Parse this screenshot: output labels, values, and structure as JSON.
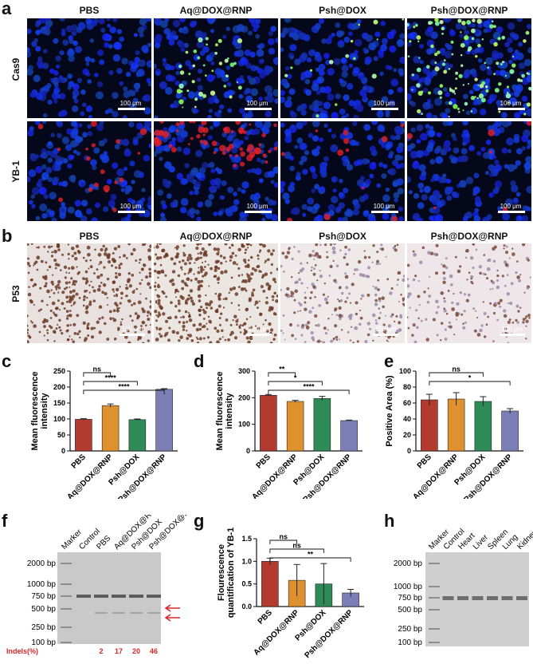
{
  "figure": {
    "panel_labels": [
      "a",
      "b",
      "c",
      "d",
      "e",
      "f",
      "g",
      "h"
    ],
    "groups": [
      "PBS",
      "Aq@DOX@RNP",
      "Psh@DOX",
      "Psh@DOX@RNP"
    ],
    "row_labels": {
      "cas9": "Cas9",
      "yb1": "YB-1",
      "p53": "P53"
    },
    "scale_bar": "100 μm"
  },
  "chart_data": [
    {
      "id": "c",
      "type": "bar",
      "categories": [
        "PBS",
        "Aq@DOX@RNP",
        "Psh@DOX",
        "Psh@DOX@RNP"
      ],
      "values": [
        99,
        142,
        98,
        193
      ],
      "errors": [
        2,
        5,
        2,
        2
      ],
      "ylabel": "Mean fluorescence\nintensity",
      "ylim": [
        0,
        250
      ],
      "yticks": [
        0,
        50,
        100,
        150,
        200,
        250
      ],
      "colors": [
        "#b23a2e",
        "#e0912f",
        "#2e8b57",
        "#7b7fb5"
      ],
      "significance": [
        {
          "from": 0,
          "to": 1,
          "label": "ns"
        },
        {
          "from": 0,
          "to": 2,
          "label": "****"
        },
        {
          "from": 0,
          "to": 3,
          "label": "****"
        }
      ]
    },
    {
      "id": "d",
      "type": "bar",
      "categories": [
        "PBS",
        "Aq@DOX@RNP",
        "Psh@DOX",
        "Psh@DOX@RNP"
      ],
      "values": [
        209,
        186,
        197,
        114
      ],
      "errors": [
        3,
        4,
        8,
        2
      ],
      "ylabel": "Mean fluorescence\nintensity",
      "ylim": [
        0,
        300
      ],
      "yticks": [
        0,
        100,
        200,
        300
      ],
      "colors": [
        "#b23a2e",
        "#e0912f",
        "#2e8b57",
        "#7b7fb5"
      ],
      "significance": [
        {
          "from": 0,
          "to": 1,
          "label": "**"
        },
        {
          "from": 0,
          "to": 2,
          "label": "*"
        },
        {
          "from": 0,
          "to": 3,
          "label": "****"
        }
      ]
    },
    {
      "id": "e",
      "type": "bar",
      "categories": [
        "PBS",
        "Aq@DOX@RNP",
        "Psh@DOX",
        "Psh@DOX@RNP"
      ],
      "values": [
        64,
        65,
        62,
        50
      ],
      "errors": [
        7,
        8,
        6,
        3
      ],
      "ylabel": "Positive Area (%)",
      "ylim": [
        0,
        100
      ],
      "yticks": [
        0,
        20,
        40,
        60,
        80,
        100
      ],
      "colors": [
        "#b23a2e",
        "#e0912f",
        "#2e8b57",
        "#7b7fb5"
      ],
      "significance": [
        {
          "from": 0,
          "to": 2,
          "label": "ns"
        },
        {
          "from": 0,
          "to": 3,
          "label": "*"
        }
      ]
    },
    {
      "id": "g",
      "type": "bar",
      "categories": [
        "PBS",
        "Aq@DOX@RNP",
        "Psh@DOX",
        "Psh@DOX@RNP"
      ],
      "values": [
        1.0,
        0.58,
        0.5,
        0.3
      ],
      "errors": [
        0.07,
        0.35,
        0.45,
        0.08
      ],
      "ylabel": "Flourescence\nquantification of YB-1",
      "ylim": [
        0,
        1.5
      ],
      "yticks": [
        0.0,
        0.5,
        1.0,
        1.5
      ],
      "colors": [
        "#b23a2e",
        "#e0912f",
        "#2e8b57",
        "#7b7fb5"
      ],
      "significance": [
        {
          "from": 0,
          "to": 1,
          "label": "ns"
        },
        {
          "from": 0,
          "to": 2,
          "label": "ns"
        },
        {
          "from": 0,
          "to": 3,
          "label": "**"
        }
      ]
    }
  ],
  "gel_f": {
    "lanes": [
      "Marker",
      "Control",
      "PBS",
      "Aq@DOX@RNP",
      "Psh@DOX",
      "Psh@DOX@RNP"
    ],
    "ladder": [
      "2000 bp",
      "1000 bp",
      "750 bp",
      "500 bp",
      "250 bp",
      "100 bp"
    ],
    "indels_label": "Indels(%)",
    "indels": [
      "2",
      "17",
      "20",
      "46"
    ],
    "indel_color": "#d9262b"
  },
  "gel_h": {
    "lanes": [
      "Marker",
      "Control",
      "Heart",
      "Liver",
      "Spleen",
      "Lung",
      "Kidney"
    ],
    "ladder": [
      "2000 bp",
      "1000 bp",
      "750 bp",
      "500 bp",
      "250 bp",
      "100 bp"
    ]
  }
}
